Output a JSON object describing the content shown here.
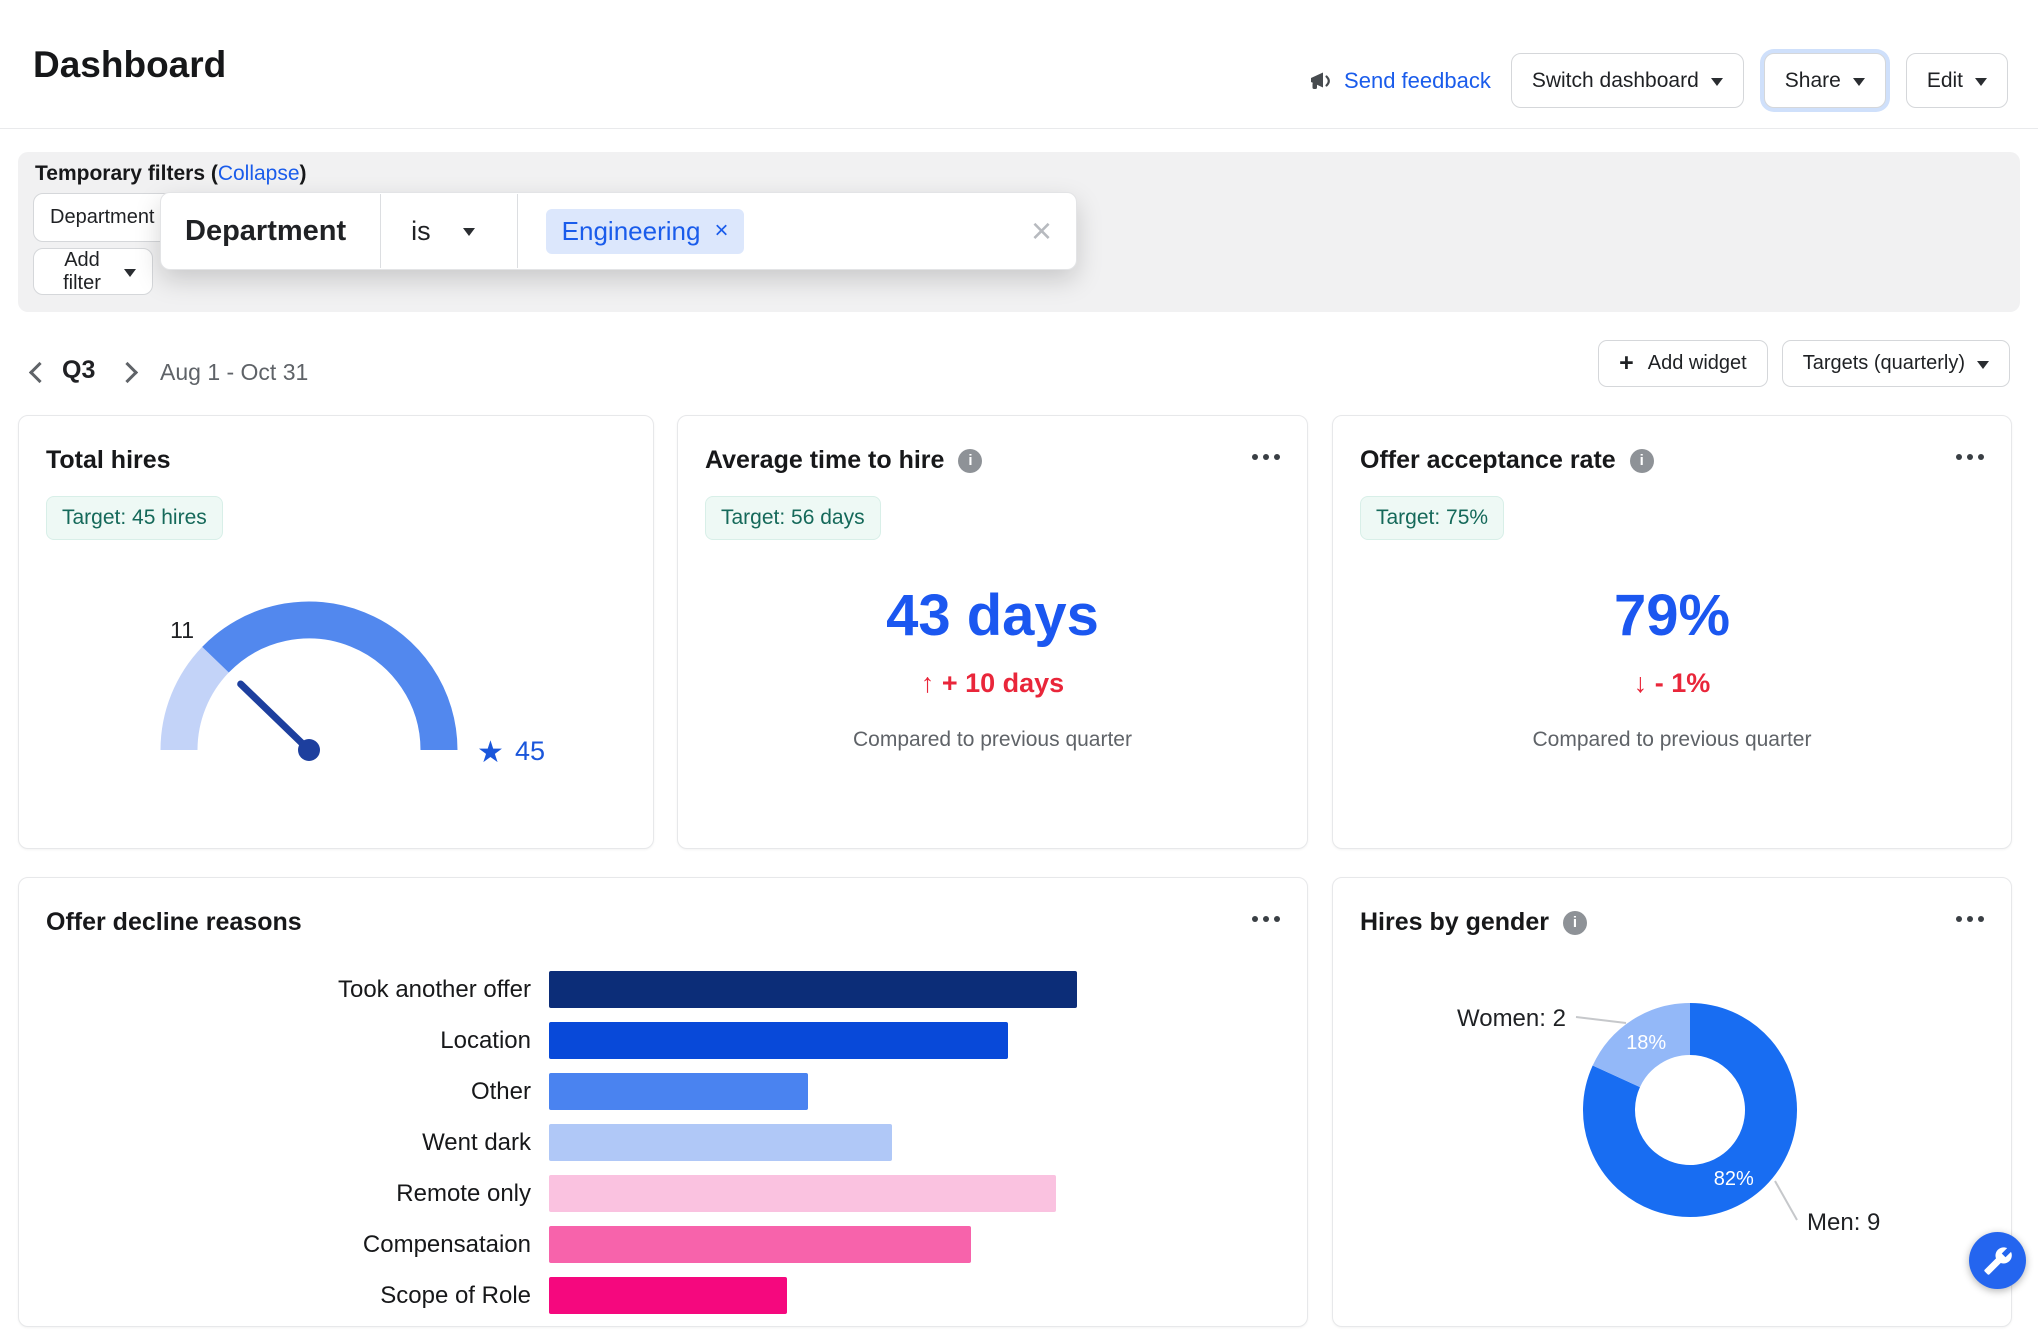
{
  "header": {
    "title": "Dashboard",
    "send_feedback": "Send feedback",
    "switch_dashboard": "Switch dashboard",
    "share": "Share",
    "edit": "Edit"
  },
  "filters": {
    "label_prefix": "Temporary filters (",
    "collapse_link": "Collapse",
    "label_suffix": ")",
    "department_button": "Department",
    "add_filter_button": "Add filter"
  },
  "filter_popup": {
    "field": "Department",
    "operator": "is",
    "value_chip": "Engineering",
    "remove_symbol": "×",
    "close_symbol": "×"
  },
  "period": {
    "quarter": "Q3",
    "range": "Aug 1 - Oct 31",
    "add_widget": "Add widget",
    "plus_symbol": "+",
    "targets": "Targets (quarterly)"
  },
  "ui": {
    "info_glyph": "i"
  },
  "widgets": {
    "total_hires": {
      "title": "Total hires",
      "target_pill": "Target: 45 hires",
      "gauge": {
        "value": 11,
        "target": 45,
        "value_label": "11",
        "target_label": "45",
        "target_star": "★",
        "progress_color": "#c3d3f8",
        "track_color": "#5288ee",
        "needle_color": "#1d3f9e",
        "target_color": "#1a56db"
      }
    },
    "avg_time_to_hire": {
      "title": "Average time to hire",
      "target_pill": "Target: 56 days",
      "value": "43 days",
      "delta_arrow": "↑",
      "delta": "+ 10 days",
      "compare": "Compared to previous quarter"
    },
    "offer_acceptance": {
      "title": "Offer acceptance rate",
      "target_pill": "Target: 75%",
      "value": "79%",
      "delta_arrow": "↓",
      "delta": "- 1%",
      "compare": "Compared to previous quarter"
    },
    "offer_decline": {
      "title": "Offer decline reasons",
      "chart": {
        "type": "bar",
        "orientation": "horizontal",
        "scale": "relative, longest bar = 100, no axis shown",
        "items": [
          {
            "label": "Took another offer",
            "value": 100,
            "color": "#0c2d78"
          },
          {
            "label": "Location",
            "value": 87,
            "color": "#0849d9"
          },
          {
            "label": "Other",
            "value": 49,
            "color": "#4a83f0"
          },
          {
            "label": "Went dark",
            "value": 65,
            "color": "#b0c8f7"
          },
          {
            "label": "Remote only",
            "value": 96,
            "color": "#fac2e0"
          },
          {
            "label": "Compensataion",
            "value": 80,
            "color": "#f763ab"
          },
          {
            "label": "Scope of Role",
            "value": 45,
            "color": "#f5087e"
          }
        ]
      }
    },
    "hires_by_gender": {
      "title": "Hires by gender",
      "chart": {
        "type": "donut",
        "slices": [
          {
            "label": "Men: 9",
            "value": 9,
            "pct_label": "82%",
            "color": "#186df2"
          },
          {
            "label": "Women: 2",
            "value": 2,
            "pct_label": "18%",
            "color": "#93b8f8"
          }
        ]
      }
    }
  },
  "colors": {
    "accent_blue": "#1a5ceb",
    "big_number_blue": "#1b57f0",
    "delta_red": "#e9263a",
    "pill_text": "#15695a",
    "muted_text": "#5f6368",
    "fab_blue": "#2465ef"
  }
}
